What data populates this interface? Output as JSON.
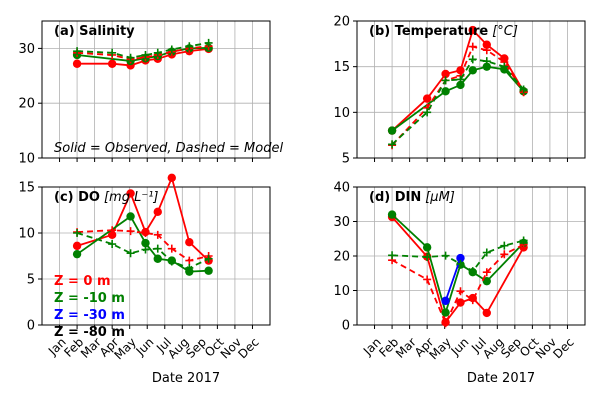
{
  "month_labels": [
    "Jan",
    "Feb",
    "Mar",
    "Apr",
    "May",
    "Jun",
    "Jul",
    "Aug",
    "Sep",
    "Oct",
    "Nov",
    "Dec"
  ],
  "xlabel": "Date 2017",
  "colors": {
    "surface": "#ff0000",
    "bottom": "#008000",
    "mid": "#0000ff",
    "deep": "#000000",
    "grid": "#b0b0b0"
  },
  "legend_depths": [
    {
      "label": "Z =   0 m",
      "color": "#ff0000"
    },
    {
      "label": "Z =  -10 m",
      "color": "#008000"
    },
    {
      "label": "Z =  -30 m",
      "color": "#0000ff"
    },
    {
      "label": "Z =  -80 m",
      "color": "#000000"
    }
  ],
  "chart_data": [
    {
      "panel": "(a)",
      "title_prefix": "(a) ",
      "title_main": "Salinity",
      "title_unit": "",
      "type": "line",
      "ylim": [
        10,
        35
      ],
      "yticks": [
        10,
        20,
        30
      ],
      "show_x_labels": false,
      "note": "Solid = Observed, Dashed = Model",
      "series": [
        {
          "depth": "0 m",
          "kind": "observed",
          "color": "#ff0000",
          "x": [
            2.0,
            4.0,
            5.05,
            5.9,
            6.6,
            7.4,
            8.4,
            9.5
          ],
          "y": [
            27.2,
            27.2,
            26.9,
            27.8,
            28.1,
            28.9,
            29.5,
            29.9
          ]
        },
        {
          "depth": "-10 m",
          "kind": "observed",
          "color": "#008000",
          "x": [
            2.0,
            5.05,
            5.9,
            6.6,
            7.4,
            8.4,
            9.5
          ],
          "y": [
            28.8,
            27.7,
            28.2,
            28.6,
            29.4,
            30.0,
            30.1
          ]
        },
        {
          "depth": "0 m",
          "kind": "model",
          "color": "#ff0000",
          "x": [
            2.0,
            4.0,
            5.05,
            5.9,
            6.6,
            7.4,
            8.4,
            9.5
          ],
          "y": [
            29.2,
            28.8,
            28.0,
            28.4,
            28.8,
            29.4,
            30.0,
            30.4
          ]
        },
        {
          "depth": "-10 m",
          "kind": "model",
          "color": "#008000",
          "x": [
            2.0,
            4.0,
            5.05,
            5.9,
            6.6,
            7.4,
            8.4,
            9.5
          ],
          "y": [
            29.5,
            29.2,
            28.3,
            28.8,
            29.2,
            29.8,
            30.4,
            31.0
          ]
        }
      ]
    },
    {
      "panel": "(b)",
      "title_prefix": "(b) ",
      "title_main": "Temperature",
      "title_unit": "[°C]",
      "type": "line",
      "ylim": [
        5,
        20
      ],
      "yticks": [
        5,
        10,
        15,
        20
      ],
      "show_x_labels": false,
      "series": [
        {
          "depth": "0 m",
          "kind": "observed",
          "color": "#ff0000",
          "x": [
            2.0,
            4.0,
            5.05,
            5.9,
            6.6,
            7.4,
            8.4,
            9.5
          ],
          "y": [
            8.0,
            11.5,
            14.2,
            14.6,
            19.0,
            17.4,
            15.9,
            12.3
          ]
        },
        {
          "depth": "-10 m",
          "kind": "observed",
          "color": "#008000",
          "x": [
            2.0,
            5.05,
            5.9,
            6.6,
            7.4,
            8.4,
            9.5
          ],
          "y": [
            8.0,
            12.3,
            13.0,
            14.6,
            15.0,
            14.7,
            12.3
          ]
        },
        {
          "depth": "0 m",
          "kind": "model",
          "color": "#ff0000",
          "x": [
            2.0,
            4.0,
            5.05,
            5.9,
            6.6,
            7.4,
            8.4,
            9.5
          ],
          "y": [
            6.4,
            10.5,
            13.5,
            14.0,
            17.2,
            16.8,
            15.5,
            12.2
          ]
        },
        {
          "depth": "-10 m",
          "kind": "model",
          "color": "#008000",
          "x": [
            2.0,
            4.0,
            5.05,
            5.9,
            6.6,
            7.4,
            8.4,
            9.5
          ],
          "y": [
            6.5,
            10.0,
            13.5,
            13.6,
            15.8,
            15.6,
            15.0,
            12.5
          ]
        }
      ]
    },
    {
      "panel": "(c)",
      "title_prefix": "(c) ",
      "title_main": "DO",
      "title_unit": "[mg L⁻¹]",
      "type": "line",
      "ylim": [
        0,
        15
      ],
      "yticks": [
        0,
        5,
        10,
        15
      ],
      "show_x_labels": true,
      "series": [
        {
          "depth": "0 m",
          "kind": "observed",
          "color": "#ff0000",
          "x": [
            2.0,
            4.0,
            5.05,
            5.9,
            6.6,
            7.4,
            8.4,
            9.5
          ],
          "y": [
            8.6,
            9.8,
            14.3,
            10.1,
            12.3,
            16.0,
            9.0,
            7.0
          ]
        },
        {
          "depth": "-10 m",
          "kind": "observed",
          "color": "#008000",
          "x": [
            2.0,
            5.05,
            5.9,
            6.6,
            7.4,
            8.4,
            9.5
          ],
          "y": [
            7.7,
            11.8,
            8.9,
            7.2,
            7.0,
            5.8,
            5.9
          ]
        },
        {
          "depth": "0 m",
          "kind": "model",
          "color": "#ff0000",
          "x": [
            2.0,
            4.0,
            5.05,
            5.9,
            6.6,
            7.4,
            8.4,
            9.5
          ],
          "y": [
            10.1,
            10.3,
            10.2,
            10.0,
            9.8,
            8.3,
            7.0,
            7.5
          ]
        },
        {
          "depth": "-10 m",
          "kind": "model",
          "color": "#008000",
          "x": [
            2.0,
            4.0,
            5.05,
            5.9,
            6.6,
            7.4,
            8.4,
            9.5
          ],
          "y": [
            10.0,
            8.8,
            7.8,
            8.2,
            8.3,
            6.9,
            6.2,
            7.2
          ]
        }
      ]
    },
    {
      "panel": "(d)",
      "title_prefix": "(d) ",
      "title_main": "DIN",
      "title_unit": "[μM]",
      "type": "line",
      "ylim": [
        0,
        40
      ],
      "yticks": [
        0,
        10,
        20,
        30,
        40
      ],
      "show_x_labels": true,
      "series": [
        {
          "depth": "0 m",
          "kind": "observed",
          "color": "#ff0000",
          "x": [
            2.0,
            4.0,
            5.05,
            5.9,
            6.6,
            7.4,
            9.5
          ],
          "y": [
            31.3,
            19.8,
            0.8,
            6.5,
            7.8,
            3.5,
            22.5
          ]
        },
        {
          "depth": "-10 m",
          "kind": "observed",
          "color": "#008000",
          "x": [
            2.0,
            4.0,
            5.05,
            5.9,
            6.6,
            7.4,
            9.5
          ],
          "y": [
            32.0,
            22.5,
            3.6,
            17.5,
            15.3,
            12.7,
            23.8
          ]
        },
        {
          "depth": "-30 m",
          "kind": "observed",
          "color": "#0000ff",
          "x": [
            5.05,
            5.9
          ],
          "y": [
            7.0,
            19.4
          ]
        },
        {
          "depth": "0 m",
          "kind": "model",
          "color": "#ff0000",
          "x": [
            2.0,
            4.0,
            5.05,
            5.9,
            6.6,
            7.4,
            8.4,
            9.5
          ],
          "y": [
            18.8,
            13.2,
            0.5,
            9.8,
            7.2,
            15.3,
            20.5,
            23.3
          ]
        },
        {
          "depth": "-10 m",
          "kind": "model",
          "color": "#008000",
          "x": [
            2.0,
            4.0,
            5.05,
            5.9,
            6.6,
            7.4,
            8.4,
            9.5
          ],
          "y": [
            20.2,
            19.7,
            20.1,
            17.7,
            15.6,
            21.0,
            23.0,
            24.5
          ]
        }
      ]
    }
  ]
}
